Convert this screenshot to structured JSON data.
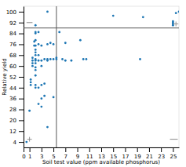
{
  "chart_data": {
    "type": "scatter",
    "xlabel": "Soil test value (ppm available phosphorus)",
    "ylabel": "Relative yield",
    "x": [
      0.5,
      1.0,
      1.2,
      1.2,
      1.2,
      1.5,
      1.5,
      1.5,
      1.5,
      1.8,
      1.8,
      2.0,
      2.0,
      2.0,
      2.0,
      2.0,
      2.0,
      2.0,
      2.0,
      2.0,
      2.0,
      2.0,
      2.0,
      2.0,
      2.0,
      2.0,
      2.0,
      2.5,
      2.5,
      2.5,
      2.5,
      2.5,
      2.5,
      3.0,
      3.0,
      3.0,
      3.0,
      3.0,
      3.0,
      3.5,
      3.5,
      3.5,
      4.0,
      4.0,
      4.0,
      4.0,
      4.5,
      4.5,
      5.0,
      5.0,
      5.0,
      5.5,
      5.5,
      6.0,
      6.5,
      7.0,
      7.0,
      8.0,
      9.5,
      10.0,
      10.5,
      15.0,
      19.5,
      20.0,
      4.0,
      25.0,
      25.0,
      25.0,
      25.0,
      25.5,
      26.0
    ],
    "values": [
      4,
      27,
      46,
      48,
      50,
      60,
      62,
      64,
      66,
      75,
      78,
      44,
      46,
      53,
      57,
      59,
      62,
      64,
      65,
      68,
      70,
      72,
      75,
      79,
      84,
      85,
      90,
      32,
      44,
      64,
      68,
      76,
      85,
      30,
      36,
      46,
      60,
      64,
      75,
      38,
      47,
      65,
      15,
      64,
      65,
      76,
      65,
      77,
      37,
      65,
      76,
      65,
      66,
      85,
      65,
      64,
      77,
      64,
      79,
      65,
      65,
      97,
      65,
      96,
      100,
      90,
      91,
      92,
      93,
      99,
      100
    ],
    "xlim": [
      0,
      26
    ],
    "ylim": [
      0,
      104
    ],
    "xticks": [
      0,
      1,
      3,
      5,
      7,
      9,
      11,
      13,
      15,
      17,
      19,
      21,
      23,
      25
    ],
    "yticks": [
      4,
      12,
      20,
      28,
      36,
      44,
      52,
      60,
      68,
      76,
      84,
      92,
      100
    ],
    "hline": 88,
    "vline": 5.5,
    "crosses": [
      {
        "x": 1.0,
        "y": 6
      },
      {
        "x": 25.5,
        "y": 91
      }
    ],
    "segments": [
      {
        "x1": 0.5,
        "x2": 1.5,
        "y": 92
      },
      {
        "x1": 24.5,
        "x2": 25.8,
        "y": 6
      }
    ]
  }
}
